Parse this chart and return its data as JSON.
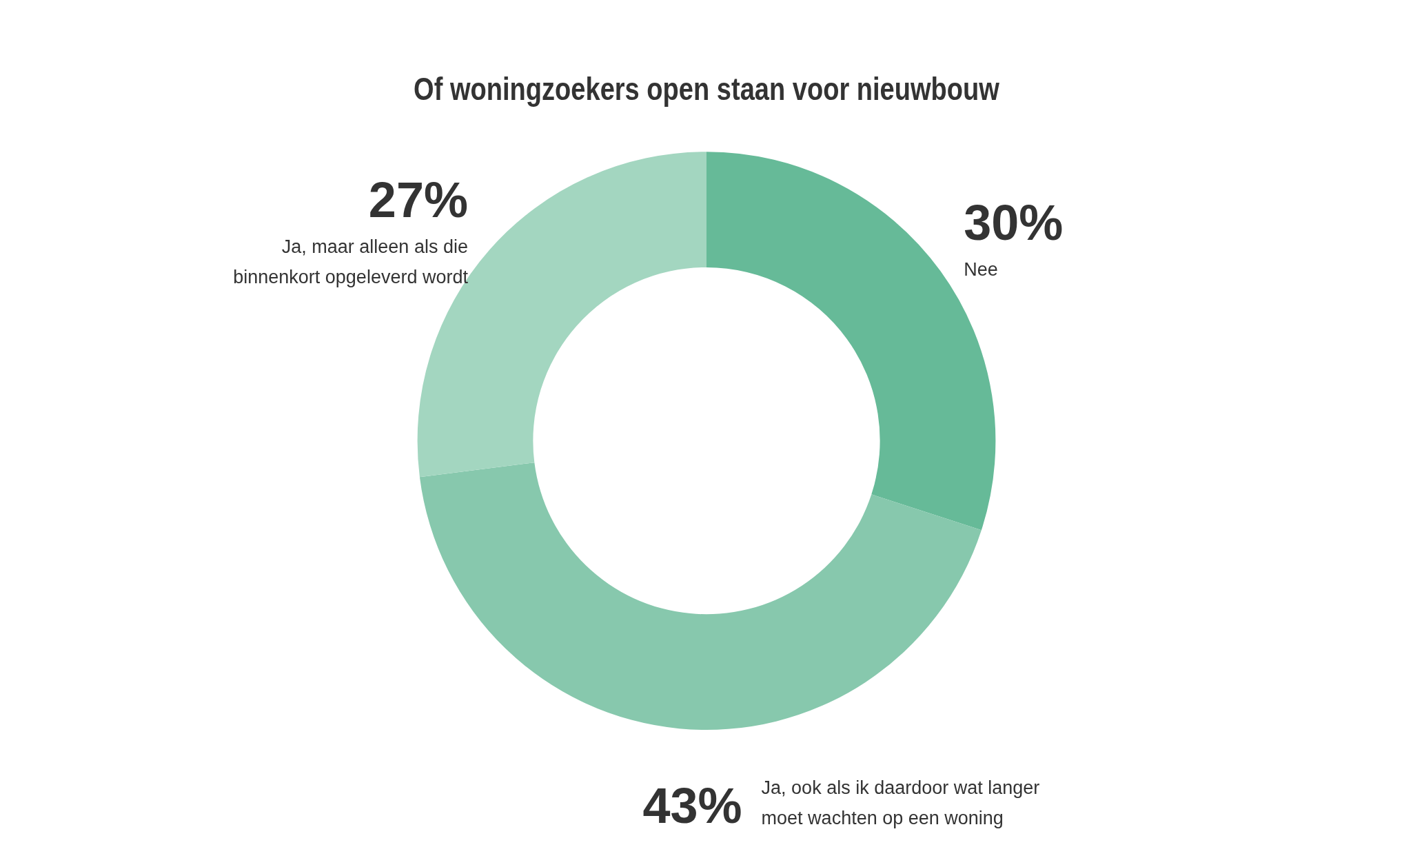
{
  "chart_data": {
    "type": "donut",
    "title": "Of woningzoekers open staan voor nieuwbouw",
    "categories": [
      "Nee",
      "Ja, ook als ik daardoor wat langer\nmoet wachten op een woning",
      "Ja, maar alleen als die\nbinnenkort opgeleverd wordt"
    ],
    "values": [
      30,
      43,
      27
    ],
    "colors": [
      "#66ba98",
      "#87c8ad",
      "#a3d6c0"
    ],
    "value_labels": [
      "30%",
      "43%",
      "27%"
    ],
    "legend": false
  }
}
